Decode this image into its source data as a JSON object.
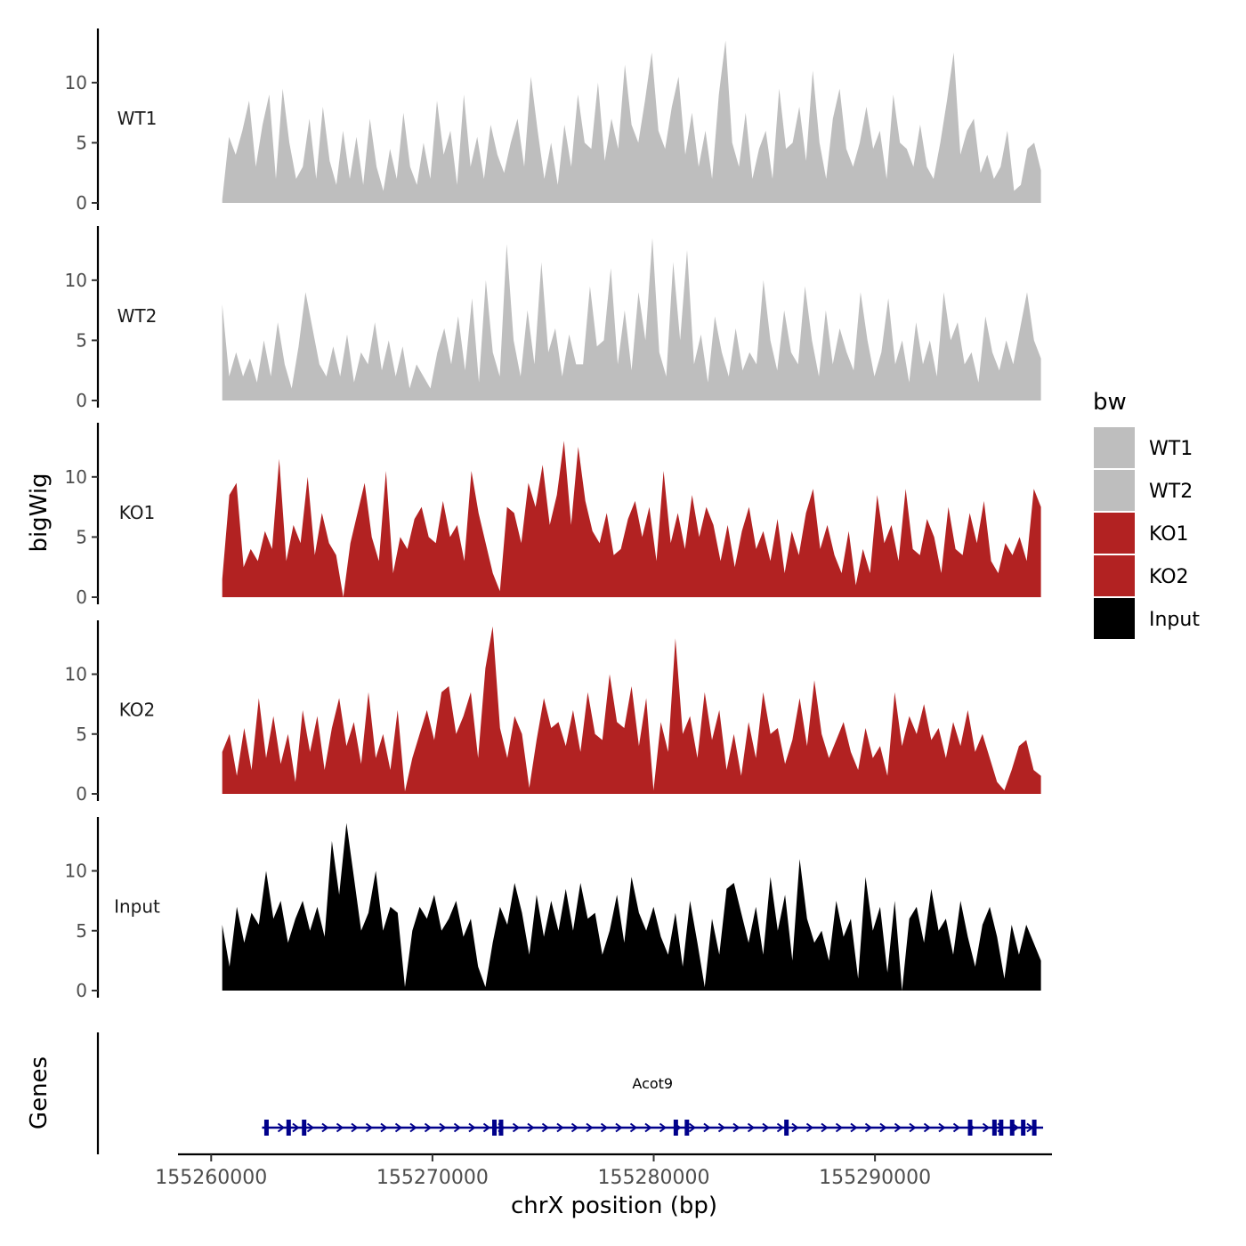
{
  "chart_data": {
    "type": "area",
    "title": "",
    "xlabel": "chrX position (bp)",
    "ylabel": "bigWig",
    "genes_label": "Genes",
    "xlim": [
      155258500,
      155298000
    ],
    "ylim": [
      0,
      14.5
    ],
    "x_ticks": [
      155260000,
      155270000,
      155280000,
      155290000
    ],
    "x_tick_labels": [
      "155260000",
      "155270000",
      "155280000",
      "155290000"
    ],
    "y_ticks": [
      0,
      5,
      10
    ],
    "y_tick_labels": [
      "0",
      "5",
      "10"
    ],
    "signal_range": [
      155260500,
      155297500
    ],
    "legend": {
      "title": "bw",
      "placement": "right",
      "entries": [
        {
          "label": "WT1",
          "color": "#BEBEBE"
        },
        {
          "label": "WT2",
          "color": "#BEBEBE"
        },
        {
          "label": "KO1",
          "color": "#B22222"
        },
        {
          "label": "KO2",
          "color": "#B22222"
        },
        {
          "label": "Input",
          "color": "#000000"
        }
      ]
    },
    "series": [
      {
        "name": "WT1",
        "color": "#BEBEBE",
        "values": [
          0.3,
          5.5,
          4,
          6,
          8.5,
          3,
          6.5,
          9,
          2,
          9.5,
          5,
          2,
          3,
          7,
          2,
          8,
          3.5,
          1.5,
          6,
          2,
          5.5,
          1.5,
          7,
          3,
          1,
          4.5,
          2,
          7.5,
          3,
          1.5,
          5,
          2,
          8.5,
          4,
          6,
          1.5,
          9,
          3,
          5.5,
          2,
          6.5,
          4,
          2.5,
          5,
          7,
          3,
          10.5,
          6,
          2,
          5,
          1.5,
          6.5,
          3,
          9,
          5,
          4.5,
          10,
          3.5,
          7,
          4.5,
          11.5,
          6.5,
          5,
          8.5,
          12.5,
          6,
          4.5,
          8,
          10.5,
          4,
          7.5,
          3,
          6,
          2,
          9,
          13.5,
          5,
          3,
          7.5,
          2,
          4.5,
          6,
          2,
          9.5,
          4.5,
          5,
          8,
          3.5,
          11,
          5,
          2,
          7,
          9.5,
          4.5,
          3,
          5,
          8,
          4.5,
          6,
          2,
          9,
          5,
          4.5,
          3,
          6.5,
          3,
          2,
          5,
          8.5,
          12.5,
          4,
          6,
          7,
          2.5,
          4,
          2,
          3,
          6,
          1,
          1.5,
          4.5,
          5,
          2.7
        ],
        "hidden_labels": "WT1"
      },
      {
        "name": "WT2",
        "color": "#BEBEBE",
        "values": [
          8,
          2,
          4,
          2,
          3.5,
          1.5,
          5,
          2,
          6.5,
          3,
          1,
          4.5,
          9,
          6,
          3,
          2,
          4.5,
          2,
          5.5,
          1.5,
          4,
          3,
          6.5,
          2.5,
          5,
          2,
          4.5,
          1,
          3,
          2,
          1,
          4,
          6,
          3,
          7,
          2.5,
          8.5,
          1.5,
          10,
          4,
          2,
          13,
          5,
          2,
          7.5,
          3,
          11.5,
          4,
          6,
          2,
          5.5,
          3,
          3,
          9.5,
          4.5,
          5,
          11,
          3,
          7.5,
          2.5,
          9,
          5,
          13.5,
          4,
          2,
          11.5,
          5,
          12.5,
          3,
          5.5,
          1.5,
          7,
          4,
          2,
          6,
          2.5,
          4,
          3,
          10,
          5,
          2.5,
          7.5,
          4,
          3,
          9.5,
          5,
          2,
          7.5,
          3,
          6,
          4,
          2.5,
          9,
          5,
          2,
          4,
          8.5,
          3,
          5,
          1.5,
          6.5,
          3,
          5,
          2,
          9,
          5,
          6.5,
          3,
          4,
          1.5,
          7,
          4,
          2.5,
          5,
          3,
          6,
          9,
          5,
          3.5
        ],
        "hidden_labels": "WT2"
      },
      {
        "name": "KO1",
        "color": "#B22222",
        "values": [
          1.5,
          8.5,
          9.5,
          2.5,
          4,
          3,
          5.5,
          4,
          11.5,
          3,
          6,
          4.5,
          10,
          3.5,
          7,
          4.5,
          3.5,
          0,
          4.5,
          7,
          9.5,
          5,
          3,
          10.5,
          2,
          5,
          4,
          6.5,
          7.5,
          5,
          4.5,
          8,
          5,
          6,
          3,
          10.5,
          7,
          4.5,
          2,
          0.5,
          7.5,
          7,
          4.5,
          9.5,
          7.5,
          11,
          6,
          8.5,
          13,
          6,
          12.5,
          8,
          5.5,
          4.5,
          7,
          3.5,
          4,
          6.5,
          8,
          5,
          7.5,
          3,
          10.5,
          4.5,
          7,
          4,
          8.5,
          5,
          7.5,
          6,
          3,
          6,
          2.5,
          5.5,
          7.5,
          4,
          5.5,
          3,
          6.5,
          2,
          5.5,
          3.5,
          7,
          9,
          4,
          6,
          3.5,
          2,
          5.5,
          1,
          4,
          2,
          8.5,
          4.5,
          6,
          3,
          9,
          4,
          3.5,
          6.5,
          5,
          2,
          7.5,
          4,
          3.5,
          7,
          4.5,
          8,
          3,
          2,
          4.5,
          3.5,
          5,
          3,
          9,
          7.5
        ],
        "hidden_labels": "KO1"
      },
      {
        "name": "KO2",
        "color": "#B22222",
        "values": [
          3.5,
          5,
          1.5,
          5.5,
          2,
          8,
          3,
          6.5,
          2.5,
          5,
          1,
          7,
          3.5,
          6.5,
          2,
          5.5,
          8,
          4,
          6,
          2.5,
          8.5,
          3,
          5,
          2,
          7,
          0.2,
          3,
          5,
          7,
          4.5,
          8.5,
          9,
          5,
          6.5,
          8.5,
          3,
          10.5,
          14,
          5.5,
          3,
          6.5,
          5,
          0.5,
          4.5,
          8,
          5.5,
          6,
          4,
          7,
          3.5,
          8.5,
          5,
          4.5,
          10,
          6,
          5.5,
          9,
          4,
          8,
          0.3,
          6,
          3.5,
          13,
          5,
          6.5,
          3,
          8.5,
          4.5,
          7,
          2,
          5,
          1.5,
          6,
          3,
          8.5,
          5,
          5.5,
          2.5,
          4.5,
          8,
          4,
          9.5,
          5,
          3,
          4.5,
          6,
          3.5,
          2,
          5.5,
          3,
          4,
          1.5,
          8.5,
          4,
          6.5,
          5,
          7.5,
          4.5,
          5.5,
          3,
          6,
          4,
          7,
          3.5,
          5,
          3,
          1,
          0.3,
          2,
          4,
          4.5,
          2,
          1.5
        ],
        "hidden_labels": "KO2"
      },
      {
        "name": "Input",
        "color": "#000000",
        "values": [
          5.5,
          2,
          7,
          4,
          6.5,
          5.5,
          10,
          6,
          7.5,
          4,
          6,
          7.5,
          5,
          7,
          4.5,
          12.5,
          8,
          14,
          9.5,
          5,
          6.5,
          10,
          5,
          7,
          6.5,
          0.3,
          5,
          7,
          6,
          8,
          5,
          6,
          7.5,
          4.5,
          6,
          2,
          0.3,
          4,
          7,
          5.5,
          9,
          6.5,
          3,
          8,
          4.5,
          7.5,
          5,
          8.5,
          5,
          9,
          6,
          6.5,
          3,
          5,
          8,
          4,
          9.5,
          6.5,
          5,
          7,
          4.5,
          3,
          6.5,
          2,
          7.5,
          4,
          0.3,
          6,
          3,
          8.5,
          9,
          6.5,
          4,
          7,
          3,
          9.5,
          5,
          8,
          2.5,
          11,
          6,
          4,
          5,
          2.5,
          7.5,
          4.5,
          6,
          1,
          9.5,
          5,
          7,
          1.5,
          7.5,
          0,
          6,
          7,
          4,
          8.5,
          5,
          6,
          3,
          7.5,
          4.5,
          2,
          5.5,
          7,
          4.5,
          1,
          5.5,
          3,
          5.5,
          4,
          2.5
        ],
        "hidden_labels": "Input"
      }
    ],
    "gene": {
      "name": "Acot9",
      "start": 155262300,
      "end": 155297600,
      "color": "#00008B",
      "exons": [
        155262500,
        155263500,
        155264200,
        155272800,
        155273100,
        155281000,
        155281500,
        155286000,
        155294300,
        155295400,
        155295700,
        155296200,
        155296700,
        155297200
      ],
      "strand": "+"
    }
  }
}
